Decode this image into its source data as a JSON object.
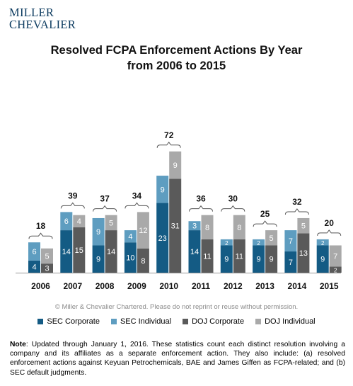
{
  "logo": {
    "line1": "MILLER",
    "line2": "CHEVALIER"
  },
  "title_line1": "Resolved FCPA Enforcement Actions By Year",
  "title_line2": "from 2006 to 2015",
  "copyright": "© Miller & Chevalier Chartered. Please do not reprint or reuse without permission.",
  "note_label": "Note",
  "note_text": ": Updated through January 1, 2016. These statistics count each distinct resolution involving a company and its affiliates as a separate enforcement action. They also include: (a) resolved enforcement actions against Keyuan Petrochemicals, BAE and James Giffen as FCPA-related; and (b) SEC default judgments.",
  "chart_data": {
    "type": "bar",
    "stacked": true,
    "categories": [
      "2006",
      "2007",
      "2008",
      "2009",
      "2010",
      "2011",
      "2012",
      "2013",
      "2014",
      "2015"
    ],
    "totals": [
      18,
      39,
      37,
      34,
      72,
      36,
      30,
      25,
      32,
      20
    ],
    "series": [
      {
        "name": "SEC Corporate",
        "color": "#145b84",
        "values": [
          4,
          14,
          9,
          10,
          23,
          14,
          9,
          9,
          7,
          9
        ]
      },
      {
        "name": "SEC Individual",
        "color": "#5e9dc0",
        "values": [
          6,
          6,
          9,
          4,
          9,
          3,
          2,
          2,
          7,
          2
        ]
      },
      {
        "name": "DOJ Corporate",
        "color": "#5a5a5a",
        "values": [
          3,
          15,
          14,
          8,
          31,
          11,
          11,
          9,
          13,
          2
        ]
      },
      {
        "name": "DOJ Individual",
        "color": "#a9a9a9",
        "values": [
          5,
          4,
          5,
          12,
          9,
          8,
          8,
          5,
          5,
          7
        ]
      }
    ],
    "grid": false,
    "legend_position": "bottom"
  }
}
